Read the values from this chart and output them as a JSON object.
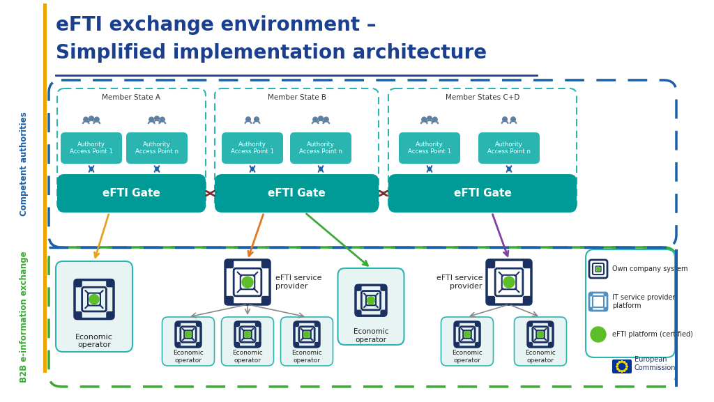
{
  "title_line1": "eFTI exchange environment –",
  "title_line2": "Simplified implementation architecture",
  "title_color": "#1a3f8f",
  "title_fontsize": 20,
  "bg_color": "#ffffff",
  "gold_bar_color": "#f0a500",
  "gate_color": "#009b96",
  "gate_text_color": "#ffffff",
  "gate_label": "eFTI Gate",
  "access_box_color": "#2ab5b0",
  "access_box_text_color": "#ffffff",
  "member_state_labels": [
    "Member State A",
    "Member State B",
    "Member States C+D"
  ],
  "competent_label": "Competent authorities",
  "b2b_label": "B2B e-information exchange",
  "outer_border_color": "#1a5fa8",
  "inner_border_color": "#2ab5b0",
  "b2b_border_color": "#3aaa35",
  "arrow_dark_red": "#7a3030",
  "arrow_orange": "#e07820",
  "arrow_green": "#3aaa35",
  "arrow_purple": "#8040a0",
  "arrow_blue": "#1a5fa8",
  "arrow_yellow": "#e8a020",
  "arrow_gray": "#888888",
  "legend_own_company": "Own company system",
  "legend_it_provider": "IT service provider\nplatform",
  "legend_efti_platform": "eFTI platform (certified)",
  "dark_navy": "#1a3060",
  "light_blue_box": "#e8f0f8",
  "efti_provider_label": "eFTI service\nprovider",
  "economic_operator_label": "Economic\noperator",
  "icon_color": "#1a3060",
  "icon_light_blue": "#5090c0",
  "person_color": "#6080a0",
  "gate_bg": "#007a78"
}
